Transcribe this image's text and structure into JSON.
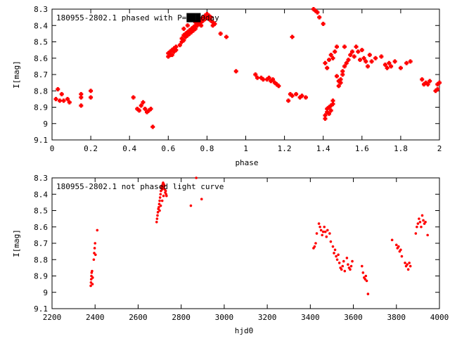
{
  "colors": {
    "points": "#ff0000",
    "axis": "#000000",
    "background": "#ffffff"
  },
  "chart_data": [
    {
      "type": "scatter",
      "title": "180955-2802.1 phased with P=███0day",
      "xlabel": "phase",
      "ylabel": "I[mag]",
      "xlim": [
        0,
        2
      ],
      "ylim": [
        9.1,
        8.3
      ],
      "y_inverted": true,
      "grid": false,
      "xticks": [
        "0",
        "0.2",
        "0.4",
        "0.6",
        "0.8",
        "1",
        "1.2",
        "1.4",
        "1.6",
        "1.8",
        "2"
      ],
      "yticks": [
        "8.3",
        "8.4",
        "8.5",
        "8.6",
        "8.7",
        "8.8",
        "8.9",
        "9",
        "9.1"
      ],
      "marker": "plus-large",
      "series": [
        {
          "points": [
            [
              0.02,
              8.85
            ],
            [
              0.03,
              8.79
            ],
            [
              0.04,
              8.86
            ],
            [
              0.05,
              8.82
            ],
            [
              0.06,
              8.86
            ],
            [
              0.08,
              8.85
            ],
            [
              0.09,
              8.87
            ],
            [
              0.15,
              8.82
            ],
            [
              0.15,
              8.84
            ],
            [
              0.15,
              8.89
            ],
            [
              0.2,
              8.8
            ],
            [
              0.2,
              8.84
            ],
            [
              0.42,
              8.84
            ],
            [
              0.44,
              8.91
            ],
            [
              0.45,
              8.92
            ],
            [
              0.46,
              8.89
            ],
            [
              0.47,
              8.87
            ],
            [
              0.48,
              8.91
            ],
            [
              0.49,
              8.93
            ],
            [
              0.5,
              8.92
            ],
            [
              0.51,
              8.91
            ],
            [
              0.52,
              9.02
            ],
            [
              0.6,
              8.57
            ],
            [
              0.6,
              8.59
            ],
            [
              0.61,
              8.56
            ],
            [
              0.61,
              8.58
            ],
            [
              0.62,
              8.55
            ],
            [
              0.62,
              8.58
            ],
            [
              0.63,
              8.56
            ],
            [
              0.63,
              8.54
            ],
            [
              0.64,
              8.53
            ],
            [
              0.64,
              8.55
            ],
            [
              0.66,
              8.52
            ],
            [
              0.67,
              8.5
            ],
            [
              0.67,
              8.48
            ],
            [
              0.68,
              8.49
            ],
            [
              0.68,
              8.46
            ],
            [
              0.69,
              8.47
            ],
            [
              0.69,
              8.45
            ],
            [
              0.7,
              8.46
            ],
            [
              0.7,
              8.44
            ],
            [
              0.71,
              8.45
            ],
            [
              0.71,
              8.43
            ],
            [
              0.72,
              8.44
            ],
            [
              0.72,
              8.42
            ],
            [
              0.73,
              8.43
            ],
            [
              0.73,
              8.41
            ],
            [
              0.74,
              8.42
            ],
            [
              0.74,
              8.4
            ],
            [
              0.75,
              8.4
            ],
            [
              0.75,
              8.38
            ],
            [
              0.76,
              8.39
            ],
            [
              0.76,
              8.37
            ],
            [
              0.77,
              8.38
            ],
            [
              0.77,
              8.36
            ],
            [
              0.78,
              8.37
            ],
            [
              0.78,
              8.35
            ],
            [
              0.79,
              8.36
            ],
            [
              0.79,
              8.34
            ],
            [
              0.8,
              8.35
            ],
            [
              0.8,
              8.33
            ],
            [
              0.81,
              8.34
            ],
            [
              0.81,
              8.36
            ],
            [
              0.82,
              8.37
            ],
            [
              0.82,
              8.35
            ],
            [
              0.83,
              8.38
            ],
            [
              0.83,
              8.4
            ],
            [
              0.84,
              8.39
            ],
            [
              0.68,
              8.42
            ],
            [
              0.7,
              8.4
            ],
            [
              0.74,
              8.38
            ],
            [
              0.77,
              8.4
            ],
            [
              0.87,
              8.45
            ],
            [
              0.9,
              8.47
            ],
            [
              0.95,
              8.68
            ],
            [
              1.05,
              8.7
            ],
            [
              1.06,
              8.72
            ],
            [
              1.08,
              8.72
            ],
            [
              1.09,
              8.73
            ],
            [
              1.11,
              8.73
            ],
            [
              1.12,
              8.72
            ],
            [
              1.13,
              8.74
            ],
            [
              1.14,
              8.73
            ],
            [
              1.15,
              8.75
            ],
            [
              1.16,
              8.76
            ],
            [
              1.17,
              8.77
            ],
            [
              1.22,
              8.86
            ],
            [
              1.23,
              8.82
            ],
            [
              1.24,
              8.83
            ],
            [
              1.24,
              8.47
            ],
            [
              1.26,
              8.82
            ],
            [
              1.28,
              8.84
            ],
            [
              1.29,
              8.83
            ],
            [
              1.31,
              8.84
            ],
            [
              1.35,
              8.3
            ],
            [
              1.36,
              8.31
            ],
            [
              1.37,
              8.32
            ],
            [
              1.38,
              8.35
            ],
            [
              1.4,
              8.39
            ],
            [
              1.41,
              8.97
            ],
            [
              1.41,
              8.95
            ],
            [
              1.42,
              8.93
            ],
            [
              1.42,
              8.91
            ],
            [
              1.43,
              8.94
            ],
            [
              1.43,
              8.9
            ],
            [
              1.44,
              8.92
            ],
            [
              1.44,
              8.89
            ],
            [
              1.45,
              8.88
            ],
            [
              1.45,
              8.86
            ],
            [
              1.41,
              8.63
            ],
            [
              1.42,
              8.66
            ],
            [
              1.43,
              8.61
            ],
            [
              1.44,
              8.58
            ],
            [
              1.45,
              8.6
            ],
            [
              1.46,
              8.56
            ],
            [
              1.47,
              8.53
            ],
            [
              1.47,
              8.71
            ],
            [
              1.48,
              8.74
            ],
            [
              1.48,
              8.77
            ],
            [
              1.49,
              8.73
            ],
            [
              1.49,
              8.75
            ],
            [
              1.5,
              8.7
            ],
            [
              1.5,
              8.68
            ],
            [
              1.51,
              8.65
            ],
            [
              1.51,
              8.53
            ],
            [
              1.52,
              8.63
            ],
            [
              1.53,
              8.61
            ],
            [
              1.54,
              8.58
            ],
            [
              1.55,
              8.56
            ],
            [
              1.56,
              8.59
            ],
            [
              1.57,
              8.53
            ],
            [
              1.58,
              8.56
            ],
            [
              1.59,
              8.61
            ],
            [
              1.6,
              8.55
            ],
            [
              1.61,
              8.6
            ],
            [
              1.62,
              8.62
            ],
            [
              1.63,
              8.65
            ],
            [
              1.64,
              8.58
            ],
            [
              1.65,
              8.62
            ],
            [
              1.67,
              8.6
            ],
            [
              1.7,
              8.59
            ],
            [
              1.72,
              8.64
            ],
            [
              1.73,
              8.66
            ],
            [
              1.74,
              8.63
            ],
            [
              1.75,
              8.65
            ],
            [
              1.77,
              8.62
            ],
            [
              1.8,
              8.66
            ],
            [
              1.83,
              8.63
            ],
            [
              1.85,
              8.62
            ],
            [
              1.91,
              8.73
            ],
            [
              1.92,
              8.76
            ],
            [
              1.93,
              8.75
            ],
            [
              1.94,
              8.76
            ],
            [
              1.95,
              8.74
            ],
            [
              1.98,
              8.8
            ],
            [
              1.99,
              8.79
            ],
            [
              1.99,
              8.76
            ],
            [
              2.0,
              8.75
            ]
          ]
        }
      ]
    },
    {
      "type": "scatter",
      "title": "180955-2802.1 not phased light curve",
      "xlabel": "hjd0",
      "ylabel": "I[mag]",
      "xlim": [
        2200,
        4000
      ],
      "ylim": [
        9.1,
        8.3
      ],
      "y_inverted": true,
      "grid": false,
      "xticks": [
        "2200",
        "2400",
        "2600",
        "2800",
        "3000",
        "3200",
        "3400",
        "3600",
        "3800",
        "4000"
      ],
      "yticks": [
        "8.3",
        "8.4",
        "8.5",
        "8.6",
        "8.7",
        "8.8",
        "8.9",
        "9",
        "9.1"
      ],
      "marker": "dot-small",
      "series": [
        {
          "points": [
            [
              2380,
              8.96
            ],
            [
              2381,
              8.94
            ],
            [
              2382,
              8.92
            ],
            [
              2383,
              8.9
            ],
            [
              2384,
              8.88
            ],
            [
              2386,
              8.87
            ],
            [
              2388,
              8.95
            ],
            [
              2389,
              8.91
            ],
            [
              2394,
              8.8
            ],
            [
              2396,
              8.76
            ],
            [
              2398,
              8.73
            ],
            [
              2400,
              8.7
            ],
            [
              2402,
              8.77
            ],
            [
              2410,
              8.62
            ],
            [
              2686,
              8.57
            ],
            [
              2688,
              8.55
            ],
            [
              2690,
              8.53
            ],
            [
              2692,
              8.51
            ],
            [
              2694,
              8.49
            ],
            [
              2696,
              8.48
            ],
            [
              2698,
              8.46
            ],
            [
              2700,
              8.44
            ],
            [
              2702,
              8.42
            ],
            [
              2704,
              8.4
            ],
            [
              2706,
              8.38
            ],
            [
              2708,
              8.36
            ],
            [
              2710,
              8.35
            ],
            [
              2712,
              8.37
            ],
            [
              2714,
              8.34
            ],
            [
              2716,
              8.33
            ],
            [
              2718,
              8.36
            ],
            [
              2720,
              8.34
            ],
            [
              2722,
              8.35
            ],
            [
              2724,
              8.37
            ],
            [
              2726,
              8.39
            ],
            [
              2728,
              8.38
            ],
            [
              2730,
              8.4
            ],
            [
              2732,
              8.41
            ],
            [
              2700,
              8.5
            ],
            [
              2705,
              8.47
            ],
            [
              2712,
              8.44
            ],
            [
              2718,
              8.41
            ],
            [
              2845,
              8.47
            ],
            [
              2870,
              8.3
            ],
            [
              2895,
              8.43
            ],
            [
              3415,
              8.73
            ],
            [
              3420,
              8.72
            ],
            [
              3425,
              8.7
            ],
            [
              3430,
              8.64
            ],
            [
              3440,
              8.58
            ],
            [
              3445,
              8.6
            ],
            [
              3450,
              8.62
            ],
            [
              3455,
              8.65
            ],
            [
              3460,
              8.63
            ],
            [
              3465,
              8.6
            ],
            [
              3470,
              8.63
            ],
            [
              3475,
              8.66
            ],
            [
              3480,
              8.62
            ],
            [
              3490,
              8.64
            ],
            [
              3495,
              8.69
            ],
            [
              3505,
              8.72
            ],
            [
              3510,
              8.76
            ],
            [
              3515,
              8.74
            ],
            [
              3520,
              8.78
            ],
            [
              3525,
              8.8
            ],
            [
              3530,
              8.77
            ],
            [
              3535,
              8.82
            ],
            [
              3540,
              8.85
            ],
            [
              3545,
              8.86
            ],
            [
              3550,
              8.84
            ],
            [
              3555,
              8.81
            ],
            [
              3560,
              8.87
            ],
            [
              3570,
              8.79
            ],
            [
              3575,
              8.83
            ],
            [
              3580,
              8.85
            ],
            [
              3585,
              8.86
            ],
            [
              3590,
              8.84
            ],
            [
              3595,
              8.81
            ],
            [
              3640,
              8.84
            ],
            [
              3645,
              8.88
            ],
            [
              3650,
              8.91
            ],
            [
              3655,
              8.92
            ],
            [
              3658,
              8.9
            ],
            [
              3662,
              8.93
            ],
            [
              3668,
              9.01
            ],
            [
              3780,
              8.68
            ],
            [
              3800,
              8.71
            ],
            [
              3805,
              8.73
            ],
            [
              3810,
              8.72
            ],
            [
              3815,
              8.75
            ],
            [
              3820,
              8.74
            ],
            [
              3825,
              8.78
            ],
            [
              3840,
              8.82
            ],
            [
              3845,
              8.84
            ],
            [
              3850,
              8.83
            ],
            [
              3855,
              8.86
            ],
            [
              3860,
              8.82
            ],
            [
              3865,
              8.84
            ],
            [
              3890,
              8.64
            ],
            [
              3895,
              8.6
            ],
            [
              3900,
              8.58
            ],
            [
              3905,
              8.55
            ],
            [
              3910,
              8.57
            ],
            [
              3915,
              8.6
            ],
            [
              3920,
              8.53
            ],
            [
              3925,
              8.56
            ],
            [
              3930,
              8.58
            ],
            [
              3935,
              8.57
            ],
            [
              3945,
              8.65
            ]
          ]
        }
      ]
    }
  ]
}
